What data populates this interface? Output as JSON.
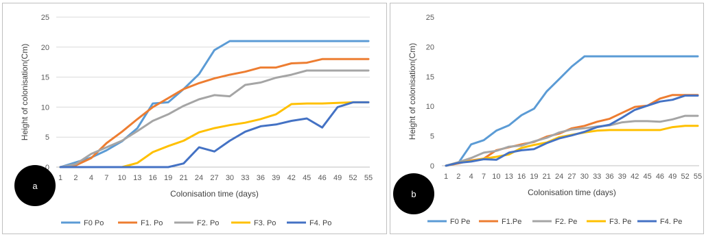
{
  "chart_data": [
    {
      "type": "line",
      "panel_label": "a",
      "xlabel": "Colonisation time (days)",
      "ylabel": "Height of colonisation(Cm)",
      "ylim": [
        0,
        25
      ],
      "yticks": [
        0,
        5,
        10,
        15,
        20,
        25
      ],
      "gridlines": true,
      "legend_position": "bottom",
      "categories": [
        "1",
        "2",
        "4",
        "7",
        "10",
        "13",
        "16",
        "19",
        "21",
        "24",
        "27",
        "30",
        "33",
        "36",
        "39",
        "42",
        "45",
        "46",
        "49",
        "52",
        "55"
      ],
      "series": [
        {
          "name": "F0 Po",
          "color": "#5b9bd5",
          "values": [
            0,
            0.8,
            1.6,
            2.8,
            4.3,
            6.5,
            10.6,
            10.8,
            13,
            15.5,
            19.5,
            21,
            21,
            21,
            21,
            21,
            21,
            21,
            21,
            21,
            21
          ]
        },
        {
          "name": "F1. Po",
          "color": "#ed7d31",
          "values": [
            0,
            0.3,
            1.5,
            4,
            5.9,
            8,
            10,
            11.5,
            13,
            14,
            14.8,
            15.4,
            15.9,
            16.6,
            16.6,
            17.3,
            17.4,
            18,
            18,
            18,
            18
          ]
        },
        {
          "name": "F2. Po",
          "color": "#a5a5a5",
          "values": [
            0,
            0.5,
            2.2,
            3.3,
            4.4,
            6,
            7.7,
            8.8,
            10.2,
            11.3,
            12,
            11.8,
            13.7,
            14.1,
            14.9,
            15.4,
            16.1,
            16.1,
            16.1,
            16.1,
            16.1
          ]
        },
        {
          "name": "F3. Po",
          "color": "#ffc000",
          "values": [
            0,
            0,
            0,
            0,
            0,
            0.7,
            2.5,
            3.5,
            4.4,
            5.8,
            6.5,
            7,
            7.4,
            8,
            8.8,
            10.5,
            10.6,
            10.6,
            10.7,
            10.8,
            10.8
          ]
        },
        {
          "name": "F4. Po",
          "color": "#4472c4",
          "values": [
            0,
            0,
            0,
            0,
            0,
            0,
            0,
            0,
            0.6,
            3.3,
            2.6,
            4.4,
            5.9,
            6.8,
            7.1,
            7.7,
            8.1,
            6.6,
            10,
            10.8,
            10.8
          ]
        }
      ]
    },
    {
      "type": "line",
      "panel_label": "b",
      "xlabel": "Colonisation time (days)",
      "ylabel": "Height of colonisation(Cm)",
      "ylim": [
        0,
        25
      ],
      "yticks": [
        0,
        5,
        10,
        15,
        20,
        25
      ],
      "gridlines": false,
      "legend_position": "bottom",
      "categories": [
        "1",
        "2",
        "4",
        "7",
        "10",
        "13",
        "16",
        "19",
        "21",
        "24",
        "27",
        "30",
        "33",
        "36",
        "39",
        "42",
        "45",
        "46",
        "49",
        "52",
        "55"
      ],
      "series": [
        {
          "name": "F0 Pe",
          "color": "#5b9bd5",
          "values": [
            0,
            0.5,
            3.6,
            4.3,
            5.9,
            6.8,
            8.5,
            9.6,
            12.5,
            14.6,
            16.7,
            18.4,
            18.4,
            18.4,
            18.4,
            18.4,
            18.4,
            18.4,
            18.4,
            18.4,
            18.4
          ]
        },
        {
          "name": "F1.Pe",
          "color": "#ed7d31",
          "values": [
            0,
            0.4,
            0.9,
            1.2,
            2.6,
            3.1,
            3.6,
            4,
            4.9,
            5.4,
            6.3,
            6.7,
            7.4,
            7.9,
            8.9,
            9.9,
            10.1,
            11.3,
            11.9,
            11.9,
            11.9
          ]
        },
        {
          "name": "F2. Pe",
          "color": "#a5a5a5",
          "values": [
            0,
            0.6,
            1.3,
            2.2,
            2.5,
            3.2,
            3.4,
            4.1,
            4.7,
            5.6,
            6.1,
            6.3,
            6.6,
            6.8,
            7.3,
            7.5,
            7.5,
            7.4,
            7.8,
            8.4,
            8.4
          ]
        },
        {
          "name": "F3. Pe",
          "color": "#ffc000",
          "values": [
            0,
            0.5,
            0.8,
            1.2,
            1.5,
            1.9,
            3,
            3.5,
            3.9,
            4.8,
            5.2,
            5.6,
            5.9,
            6,
            6,
            6,
            6,
            6,
            6.5,
            6.7,
            6.7
          ]
        },
        {
          "name": "F4. Pe",
          "color": "#4472c4",
          "values": [
            0,
            0.5,
            0.7,
            1.1,
            1,
            2.2,
            2.6,
            2.8,
            3.8,
            4.6,
            5.1,
            5.7,
            6.5,
            6.9,
            8.1,
            9.4,
            10.1,
            10.8,
            11.1,
            11.8,
            11.8
          ]
        }
      ]
    }
  ]
}
